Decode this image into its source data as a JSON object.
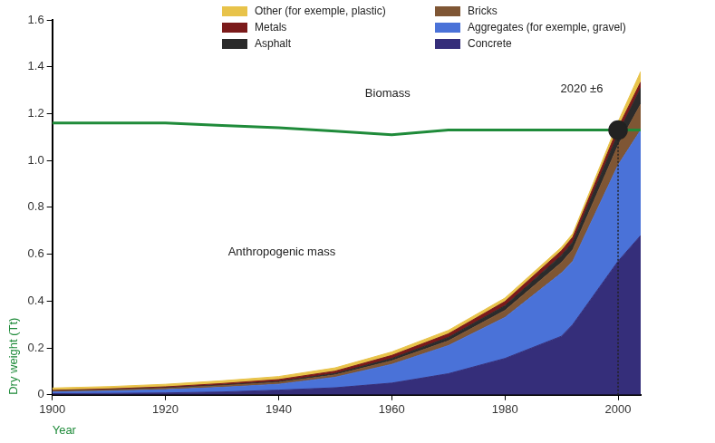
{
  "chart_data": {
    "type": "area",
    "stacked": true,
    "grid": false,
    "legend": "top",
    "x_label": "Year",
    "y_label": "Dry weight (Tt)",
    "annotations": [
      "Anthropogenic mass"
    ],
    "highlight": {
      "x": 2000,
      "y": 1.13,
      "label": "2020 ±6"
    },
    "x": [
      1900,
      1910,
      1920,
      1930,
      1940,
      1950,
      1960,
      1970,
      1980,
      1990,
      1992,
      2000,
      2004
    ],
    "xlim": [
      1900,
      2004
    ],
    "xticks": [
      1900,
      1920,
      1940,
      1960,
      1980,
      2000
    ],
    "ylim": [
      0,
      1.6
    ],
    "yticks": [
      0,
      0.2,
      0.4,
      0.6,
      0.8,
      {
        "value": 1,
        "label": "1.0"
      },
      1.2,
      1.4,
      1.6
    ],
    "series": [
      {
        "name": "Concrete",
        "type": "area",
        "color": "#352e7a",
        "values": [
          0.005,
          0.006,
          0.008,
          0.012,
          0.02,
          0.03,
          0.05,
          0.09,
          0.155,
          0.25,
          0.3,
          0.57,
          0.68
        ]
      },
      {
        "name": "Aggregates (for exemple, gravel)",
        "type": "area",
        "color": "#4a72d8",
        "values": [
          0.007,
          0.01,
          0.014,
          0.02,
          0.025,
          0.045,
          0.08,
          0.12,
          0.175,
          0.27,
          0.27,
          0.41,
          0.45
        ]
      },
      {
        "name": "Bricks",
        "type": "area",
        "color": "#7f5634",
        "values": [
          0.004,
          0.005,
          0.006,
          0.007,
          0.008,
          0.01,
          0.015,
          0.02,
          0.03,
          0.045,
          0.05,
          0.085,
          0.11
        ]
      },
      {
        "name": "Asphalt",
        "type": "area",
        "color": "#2b2b2b",
        "values": [
          0.001,
          0.001,
          0.002,
          0.003,
          0.004,
          0.006,
          0.01,
          0.015,
          0.02,
          0.03,
          0.032,
          0.05,
          0.07
        ]
      },
      {
        "name": "Metals",
        "type": "area",
        "color": "#7b1a1a",
        "values": [
          0.002,
          0.003,
          0.004,
          0.006,
          0.008,
          0.01,
          0.013,
          0.015,
          0.018,
          0.02,
          0.021,
          0.025,
          0.025
        ]
      },
      {
        "name": "Other (for exemple, plastic)",
        "type": "area",
        "color": "#e8c34a",
        "values": [
          0.01,
          0.01,
          0.011,
          0.012,
          0.013,
          0.014,
          0.015,
          0.015,
          0.015,
          0.015,
          0.015,
          0.025,
          0.045
        ]
      },
      {
        "name": "Biomass",
        "type": "line",
        "color": "#1f8b3a",
        "values": [
          1.16,
          1.16,
          1.16,
          1.15,
          1.14,
          1.125,
          1.11,
          1.13,
          1.13,
          1.13,
          1.13,
          1.13,
          1.13
        ]
      }
    ]
  }
}
